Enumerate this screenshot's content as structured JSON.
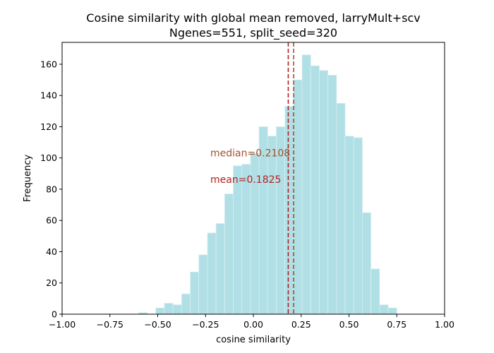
{
  "chart_data": {
    "type": "bar",
    "subtype": "histogram",
    "title": "Cosine similarity with global mean removed, larryMult+scv",
    "subtitle": "Ngenes=551, split_seed=320",
    "xlabel": "cosine similarity",
    "ylabel": "Frequency",
    "xlim": [
      -1.0,
      1.0
    ],
    "ylim": [
      0,
      174
    ],
    "xticks": [
      -1.0,
      -0.75,
      -0.5,
      -0.25,
      0.0,
      0.25,
      0.5,
      0.75,
      1.0
    ],
    "xtick_labels": [
      "−1.00",
      "−0.75",
      "−0.50",
      "−0.25",
      "0.00",
      "0.25",
      "0.50",
      "0.75",
      "1.00"
    ],
    "yticks": [
      0,
      20,
      40,
      60,
      80,
      100,
      120,
      140,
      160
    ],
    "ytick_labels": [
      "0",
      "20",
      "40",
      "60",
      "80",
      "100",
      "120",
      "140",
      "160"
    ],
    "grid": false,
    "bar_color": "#b0dfe5",
    "bar_edge_color": "#d8eef2",
    "bins": [
      {
        "x0": -0.6,
        "x1": -0.555,
        "count": 1
      },
      {
        "x0": -0.555,
        "x1": -0.51,
        "count": 0
      },
      {
        "x0": -0.51,
        "x1": -0.465,
        "count": 4
      },
      {
        "x0": -0.465,
        "x1": -0.42,
        "count": 7
      },
      {
        "x0": -0.42,
        "x1": -0.375,
        "count": 6
      },
      {
        "x0": -0.375,
        "x1": -0.33,
        "count": 13
      },
      {
        "x0": -0.33,
        "x1": -0.285,
        "count": 27
      },
      {
        "x0": -0.285,
        "x1": -0.24,
        "count": 38
      },
      {
        "x0": -0.24,
        "x1": -0.195,
        "count": 52
      },
      {
        "x0": -0.195,
        "x1": -0.15,
        "count": 58
      },
      {
        "x0": -0.15,
        "x1": -0.105,
        "count": 77
      },
      {
        "x0": -0.105,
        "x1": -0.06,
        "count": 95
      },
      {
        "x0": -0.06,
        "x1": -0.015,
        "count": 96
      },
      {
        "x0": -0.015,
        "x1": 0.03,
        "count": 103
      },
      {
        "x0": 0.03,
        "x1": 0.075,
        "count": 120
      },
      {
        "x0": 0.075,
        "x1": 0.12,
        "count": 114
      },
      {
        "x0": 0.12,
        "x1": 0.165,
        "count": 120
      },
      {
        "x0": 0.165,
        "x1": 0.21,
        "count": 133
      },
      {
        "x0": 0.21,
        "x1": 0.255,
        "count": 150
      },
      {
        "x0": 0.255,
        "x1": 0.3,
        "count": 166
      },
      {
        "x0": 0.3,
        "x1": 0.345,
        "count": 159
      },
      {
        "x0": 0.345,
        "x1": 0.39,
        "count": 156
      },
      {
        "x0": 0.39,
        "x1": 0.435,
        "count": 153
      },
      {
        "x0": 0.435,
        "x1": 0.48,
        "count": 135
      },
      {
        "x0": 0.48,
        "x1": 0.525,
        "count": 114
      },
      {
        "x0": 0.525,
        "x1": 0.57,
        "count": 113
      },
      {
        "x0": 0.57,
        "x1": 0.615,
        "count": 65
      },
      {
        "x0": 0.615,
        "x1": 0.66,
        "count": 29
      },
      {
        "x0": 0.66,
        "x1": 0.705,
        "count": 6
      },
      {
        "x0": 0.705,
        "x1": 0.75,
        "count": 4
      }
    ],
    "reference_lines": [
      {
        "label": "mean=0.1825",
        "value": 0.1825,
        "color": "#b22222",
        "style": "dashed"
      },
      {
        "label": "median=0.2108",
        "value": 0.2108,
        "color": "#a0522d",
        "style": "dashed"
      }
    ],
    "annotations": [
      {
        "text": "median=0.2108",
        "x": -0.225,
        "y": 101,
        "color": "#a0522d"
      },
      {
        "text": "mean=0.1825",
        "x": -0.225,
        "y": 84,
        "color": "#b22222"
      }
    ]
  }
}
